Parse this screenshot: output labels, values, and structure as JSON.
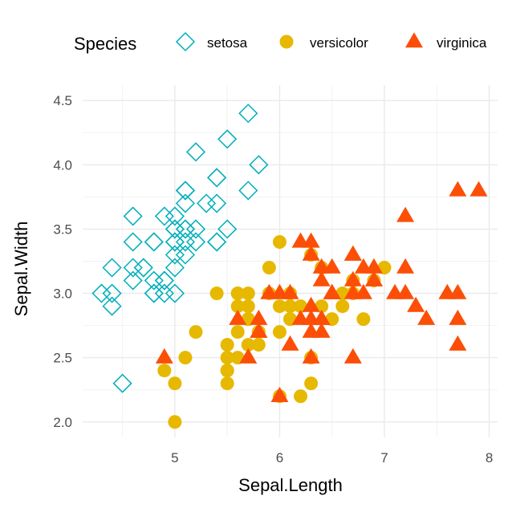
{
  "chart_data": {
    "type": "scatter",
    "xlabel": "Sepal.Length",
    "ylabel": "Sepal.Width",
    "xlim": [
      4.12,
      8.08
    ],
    "ylim": [
      1.88,
      4.62
    ],
    "xticks": [
      "5",
      "6",
      "7",
      "8"
    ],
    "yticks": [
      "2.0",
      "2.5",
      "3.0",
      "3.5",
      "4.0",
      "4.5"
    ],
    "grid": true,
    "legend": {
      "title": "Species",
      "position": "top"
    },
    "series": [
      {
        "name": "setosa",
        "color": "#00AFBB",
        "marker": "open-diamond",
        "points": [
          [
            5.1,
            3.5
          ],
          [
            4.9,
            3.0
          ],
          [
            4.7,
            3.2
          ],
          [
            4.6,
            3.1
          ],
          [
            5.0,
            3.6
          ],
          [
            5.4,
            3.9
          ],
          [
            4.6,
            3.4
          ],
          [
            5.0,
            3.4
          ],
          [
            4.4,
            2.9
          ],
          [
            4.9,
            3.1
          ],
          [
            5.4,
            3.7
          ],
          [
            4.8,
            3.4
          ],
          [
            4.8,
            3.0
          ],
          [
            4.3,
            3.0
          ],
          [
            5.8,
            4.0
          ],
          [
            5.7,
            4.4
          ],
          [
            5.4,
            3.9
          ],
          [
            5.1,
            3.5
          ],
          [
            5.7,
            3.8
          ],
          [
            5.1,
            3.8
          ],
          [
            5.4,
            3.4
          ],
          [
            5.1,
            3.7
          ],
          [
            4.6,
            3.6
          ],
          [
            5.1,
            3.3
          ],
          [
            4.8,
            3.4
          ],
          [
            5.0,
            3.0
          ],
          [
            5.0,
            3.4
          ],
          [
            5.2,
            3.5
          ],
          [
            5.2,
            3.4
          ],
          [
            4.7,
            3.2
          ],
          [
            4.8,
            3.1
          ],
          [
            5.4,
            3.4
          ],
          [
            5.2,
            4.1
          ],
          [
            5.5,
            4.2
          ],
          [
            4.9,
            3.1
          ],
          [
            5.0,
            3.2
          ],
          [
            5.5,
            3.5
          ],
          [
            4.9,
            3.6
          ],
          [
            4.4,
            3.0
          ],
          [
            5.1,
            3.4
          ],
          [
            5.0,
            3.5
          ],
          [
            4.5,
            2.3
          ],
          [
            4.4,
            3.2
          ],
          [
            5.0,
            3.5
          ],
          [
            5.1,
            3.8
          ],
          [
            4.8,
            3.0
          ],
          [
            5.1,
            3.8
          ],
          [
            4.6,
            3.2
          ],
          [
            5.3,
            3.7
          ],
          [
            5.0,
            3.3
          ]
        ]
      },
      {
        "name": "versicolor",
        "color": "#E7B800",
        "marker": "filled-circle",
        "points": [
          [
            7.0,
            3.2
          ],
          [
            6.4,
            3.2
          ],
          [
            6.9,
            3.1
          ],
          [
            5.5,
            2.3
          ],
          [
            6.5,
            2.8
          ],
          [
            5.7,
            2.8
          ],
          [
            6.3,
            3.3
          ],
          [
            4.9,
            2.4
          ],
          [
            6.6,
            2.9
          ],
          [
            5.2,
            2.7
          ],
          [
            5.0,
            2.0
          ],
          [
            5.9,
            3.0
          ],
          [
            6.0,
            2.2
          ],
          [
            6.1,
            2.9
          ],
          [
            5.6,
            2.9
          ],
          [
            6.7,
            3.1
          ],
          [
            5.6,
            3.0
          ],
          [
            5.8,
            2.7
          ],
          [
            6.2,
            2.2
          ],
          [
            5.6,
            2.5
          ],
          [
            5.9,
            3.2
          ],
          [
            6.1,
            2.8
          ],
          [
            6.3,
            2.5
          ],
          [
            6.1,
            2.8
          ],
          [
            6.4,
            2.9
          ],
          [
            6.6,
            3.0
          ],
          [
            6.8,
            2.8
          ],
          [
            6.7,
            3.0
          ],
          [
            6.0,
            2.9
          ],
          [
            5.7,
            2.6
          ],
          [
            5.5,
            2.4
          ],
          [
            5.5,
            2.4
          ],
          [
            5.8,
            2.7
          ],
          [
            6.0,
            2.7
          ],
          [
            5.4,
            3.0
          ],
          [
            6.0,
            3.4
          ],
          [
            6.7,
            3.1
          ],
          [
            6.3,
            2.3
          ],
          [
            5.6,
            3.0
          ],
          [
            5.5,
            2.5
          ],
          [
            5.5,
            2.6
          ],
          [
            6.1,
            3.0
          ],
          [
            5.8,
            2.6
          ],
          [
            5.0,
            2.3
          ],
          [
            5.6,
            2.7
          ],
          [
            5.7,
            3.0
          ],
          [
            5.7,
            2.9
          ],
          [
            6.2,
            2.9
          ],
          [
            5.1,
            2.5
          ],
          [
            5.7,
            2.8
          ]
        ]
      },
      {
        "name": "virginica",
        "color": "#FC4E07",
        "marker": "filled-triangle",
        "points": [
          [
            6.3,
            3.3
          ],
          [
            5.8,
            2.7
          ],
          [
            7.1,
            3.0
          ],
          [
            6.3,
            2.9
          ],
          [
            6.5,
            3.0
          ],
          [
            7.6,
            3.0
          ],
          [
            4.9,
            2.5
          ],
          [
            7.3,
            2.9
          ],
          [
            6.7,
            2.5
          ],
          [
            7.2,
            3.6
          ],
          [
            6.5,
            3.2
          ],
          [
            6.4,
            2.7
          ],
          [
            6.8,
            3.0
          ],
          [
            5.7,
            2.5
          ],
          [
            5.8,
            2.8
          ],
          [
            6.4,
            3.2
          ],
          [
            6.5,
            3.0
          ],
          [
            7.7,
            3.8
          ],
          [
            7.7,
            2.6
          ],
          [
            6.0,
            2.2
          ],
          [
            6.9,
            3.2
          ],
          [
            5.6,
            2.8
          ],
          [
            7.7,
            2.8
          ],
          [
            6.3,
            2.7
          ],
          [
            6.7,
            3.3
          ],
          [
            7.2,
            3.2
          ],
          [
            6.2,
            2.8
          ],
          [
            6.1,
            3.0
          ],
          [
            6.4,
            2.8
          ],
          [
            7.2,
            3.0
          ],
          [
            7.4,
            2.8
          ],
          [
            7.9,
            3.8
          ],
          [
            6.4,
            2.8
          ],
          [
            6.3,
            2.8
          ],
          [
            6.1,
            2.6
          ],
          [
            7.7,
            3.0
          ],
          [
            6.3,
            3.4
          ],
          [
            6.4,
            3.1
          ],
          [
            6.0,
            3.0
          ],
          [
            6.9,
            3.1
          ],
          [
            6.7,
            3.1
          ],
          [
            6.9,
            3.1
          ],
          [
            5.8,
            2.7
          ],
          [
            6.8,
            3.2
          ],
          [
            6.7,
            3.3
          ],
          [
            6.7,
            3.0
          ],
          [
            6.3,
            2.5
          ],
          [
            6.5,
            3.0
          ],
          [
            6.2,
            3.4
          ],
          [
            5.9,
            3.0
          ]
        ]
      }
    ]
  }
}
